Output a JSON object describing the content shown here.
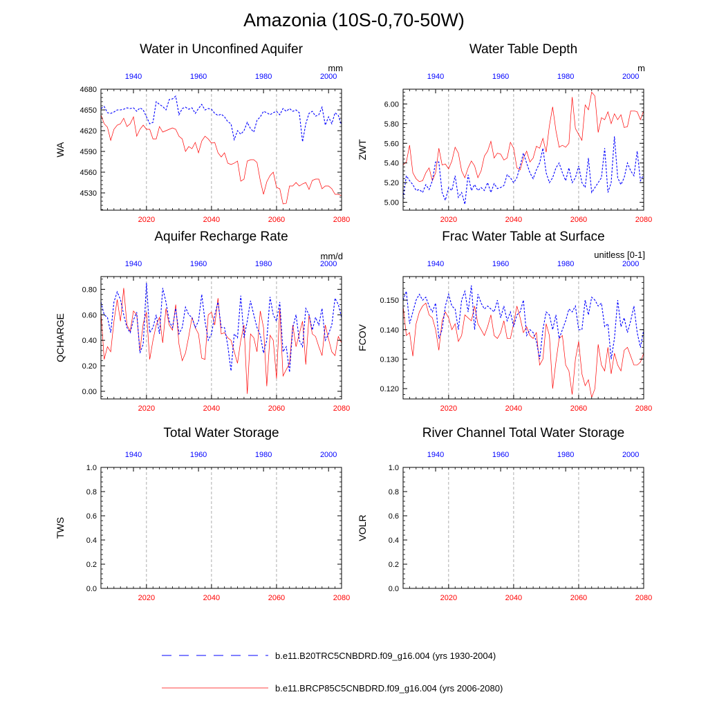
{
  "figure": {
    "title": "Amazonia (10S-0,70-50W)"
  },
  "colors": {
    "future": "#ff0000",
    "historical": "#0000ff",
    "axis": "#000000",
    "vline": "#999999"
  },
  "legend": {
    "items": [
      {
        "label": "b.e11.B20TRC5CNBDRD.f09_g16.004 (yrs 1930-2004)",
        "style": "dashed",
        "color": "#0000ff"
      },
      {
        "label": "b.e11.BRCP85C5CNBDRD.f09_g16.004 (yrs 2006-2080)",
        "style": "solid",
        "color": "#ff0000"
      }
    ]
  },
  "chart_data": [
    {
      "id": "wa",
      "type": "line",
      "title": "Water in Unconfined Aquifer",
      "ylabel": "WA",
      "units": "mm",
      "ylim": [
        4505,
        4680
      ],
      "yticks": [
        4530,
        4560,
        4590,
        4620,
        4650,
        4680
      ],
      "yminor_step": 6,
      "tick_decimals": 0,
      "xlim_bottom": [
        2006,
        2080
      ],
      "xticks_bottom": [
        2020,
        2040,
        2060,
        2080
      ],
      "xlim_top": [
        1930,
        2004
      ],
      "xticks_top": [
        1940,
        1960,
        1980,
        2000
      ],
      "vlines": [
        2020,
        2040,
        2060
      ],
      "series": [
        {
          "name": "b.e11.BRCP85C5CNBDRD.f09_g16.004 (yrs 2006-2080)",
          "axis": "bottom",
          "style": "solid",
          "x_start": 2006,
          "values": [
            4643,
            4630,
            4625,
            4606,
            4622,
            4628,
            4630,
            4638,
            4626,
            4630,
            4640,
            4612,
            4622,
            4628,
            4622,
            4622,
            4608,
            4608,
            4626,
            4618,
            4620,
            4622,
            4624,
            4622,
            4612,
            4608,
            4590,
            4597,
            4594,
            4603,
            4588,
            4605,
            4612,
            4608,
            4602,
            4603,
            4588,
            4582,
            4588,
            4573,
            4571,
            4573,
            4576,
            4547,
            4550,
            4576,
            4578,
            4578,
            4574,
            4548,
            4528,
            4546,
            4555,
            4560,
            4538,
            4536,
            4514,
            4515,
            4540,
            4540,
            4545,
            4540,
            4543,
            4545,
            4535,
            4548,
            4550,
            4550,
            4536,
            4540,
            4540,
            4536,
            4528,
            4528,
            4526
          ]
        },
        {
          "name": "b.e11.B20TRC5CNBDRD.f09_g16.004 (yrs 1930-2004)",
          "axis": "top",
          "style": "dashed",
          "x_start": 1930,
          "values": [
            4652,
            4655,
            4646,
            4645,
            4647,
            4650,
            4650,
            4651,
            4653,
            4652,
            4653,
            4648,
            4653,
            4650,
            4640,
            4630,
            4632,
            4662,
            4658,
            4655,
            4650,
            4665,
            4666,
            4670,
            4643,
            4652,
            4654,
            4651,
            4653,
            4645,
            4652,
            4658,
            4650,
            4652,
            4651,
            4645,
            4642,
            4644,
            4640,
            4633,
            4630,
            4607,
            4620,
            4615,
            4620,
            4632,
            4623,
            4618,
            4635,
            4640,
            4648,
            4646,
            4643,
            4646,
            4648,
            4643,
            4652,
            4648,
            4652,
            4648,
            4650,
            4646,
            4604,
            4630,
            4645,
            4648,
            4641,
            4643,
            4654,
            4628,
            4640,
            4630,
            4646,
            4642,
            4628
          ]
        }
      ]
    },
    {
      "id": "zwt",
      "type": "line",
      "title": "Water Table Depth",
      "ylabel": "ZWT",
      "units": "m",
      "ylim": [
        4.92,
        6.15
      ],
      "yticks": [
        5.0,
        5.2,
        5.4,
        5.6,
        5.8,
        6.0
      ],
      "yminor_step": 0.04,
      "tick_decimals": 2,
      "xlim_bottom": [
        2006,
        2080
      ],
      "xticks_bottom": [
        2020,
        2040,
        2060,
        2080
      ],
      "xlim_top": [
        1930,
        2004
      ],
      "xticks_top": [
        1940,
        1960,
        1980,
        2000
      ],
      "vlines": [
        2020,
        2040,
        2060
      ],
      "series": [
        {
          "name": "b.e11.BRCP85C5CNBDRD.f09_g16.004 (yrs 2006-2080)",
          "axis": "bottom",
          "style": "solid",
          "x_start": 2006,
          "values": [
            5.38,
            5.41,
            5.58,
            5.3,
            5.24,
            5.21,
            5.22,
            5.3,
            5.35,
            5.22,
            5.3,
            5.55,
            5.38,
            5.39,
            5.34,
            5.42,
            5.56,
            5.5,
            5.32,
            5.25,
            5.35,
            5.42,
            5.37,
            5.25,
            5.32,
            5.47,
            5.52,
            5.62,
            5.45,
            5.5,
            5.49,
            5.43,
            5.45,
            5.61,
            5.55,
            5.35,
            5.33,
            5.45,
            5.52,
            5.41,
            5.45,
            5.57,
            5.55,
            5.65,
            5.51,
            5.78,
            5.97,
            5.73,
            5.56,
            5.58,
            5.56,
            5.6,
            6.07,
            5.75,
            5.69,
            5.63,
            5.99,
            5.94,
            6.12,
            6.08,
            5.71,
            5.86,
            5.84,
            5.92,
            5.8,
            5.9,
            5.84,
            5.89,
            5.76,
            5.77,
            5.93,
            5.93,
            5.92,
            5.84,
            5.93
          ]
        },
        {
          "name": "b.e11.B20TRC5CNBDRD.f09_g16.004 (yrs 1930-2004)",
          "axis": "top",
          "style": "dashed",
          "x_start": 1930,
          "values": [
            5.04,
            5.27,
            5.22,
            5.18,
            5.12,
            5.13,
            5.1,
            5.18,
            5.13,
            5.22,
            5.41,
            5.41,
            5.1,
            5.02,
            5.15,
            5.12,
            5.27,
            5.05,
            5.1,
            4.98,
            5.28,
            5.12,
            5.18,
            5.12,
            5.15,
            5.12,
            5.2,
            5.1,
            5.19,
            5.14,
            5.15,
            5.17,
            5.28,
            5.25,
            5.2,
            5.25,
            5.37,
            5.5,
            5.4,
            5.3,
            5.24,
            5.33,
            5.4,
            5.55,
            5.3,
            5.2,
            5.25,
            5.35,
            5.4,
            5.3,
            5.22,
            5.35,
            5.2,
            5.25,
            5.37,
            5.2,
            5.15,
            5.45,
            5.1,
            5.15,
            5.2,
            5.25,
            5.55,
            5.1,
            5.2,
            5.67,
            5.25,
            5.18,
            5.25,
            5.4,
            5.32,
            5.27,
            5.52,
            5.22,
            5.28
          ]
        }
      ]
    },
    {
      "id": "qcharge",
      "type": "line",
      "title": "Aquifer Recharge Rate",
      "ylabel": "QCHARGE",
      "units": "mm/d",
      "ylim": [
        -0.06,
        0.9
      ],
      "yticks": [
        0.0,
        0.2,
        0.4,
        0.6,
        0.8
      ],
      "yminor_step": 0.04,
      "tick_decimals": 2,
      "xlim_bottom": [
        2006,
        2080
      ],
      "xticks_bottom": [
        2020,
        2040,
        2060,
        2080
      ],
      "xlim_top": [
        1930,
        2004
      ],
      "xticks_top": [
        1940,
        1960,
        1980,
        2000
      ],
      "vlines": [
        2020,
        2040,
        2060
      ],
      "series": [
        {
          "name": "b.e11.BRCP85C5CNBDRD.f09_g16.004 (yrs 2006-2080)",
          "axis": "bottom",
          "style": "solid",
          "x_start": 2006,
          "values": [
            0.62,
            0.25,
            0.35,
            0.31,
            0.55,
            0.72,
            0.55,
            0.81,
            0.52,
            0.47,
            0.63,
            0.6,
            0.32,
            0.53,
            0.62,
            0.25,
            0.4,
            0.52,
            0.58,
            0.38,
            0.65,
            0.52,
            0.48,
            0.68,
            0.37,
            0.24,
            0.3,
            0.43,
            0.58,
            0.5,
            0.45,
            0.26,
            0.25,
            0.6,
            0.62,
            0.52,
            0.73,
            0.45,
            0.46,
            0.42,
            0.4,
            0.31,
            0.22,
            0.4,
            0.52,
            -0.02,
            0.45,
            0.42,
            0.31,
            0.63,
            0.5,
            0.04,
            0.44,
            0.4,
            0.1,
            0.65,
            0.12,
            0.17,
            0.22,
            0.52,
            0.35,
            0.45,
            0.55,
            0.21,
            0.6,
            0.45,
            0.43,
            0.35,
            0.28,
            0.52,
            0.41,
            0.31,
            0.28,
            0.43,
            0.38
          ]
        },
        {
          "name": "b.e11.B20TRC5CNBDRD.f09_g16.004 (yrs 1930-2004)",
          "axis": "top",
          "style": "dashed",
          "x_start": 1930,
          "values": [
            0.7,
            0.6,
            0.58,
            0.46,
            0.7,
            0.78,
            0.72,
            0.6,
            0.5,
            0.46,
            0.56,
            0.62,
            0.3,
            0.37,
            0.85,
            0.46,
            0.5,
            0.6,
            0.45,
            0.81,
            0.7,
            0.55,
            0.5,
            0.65,
            0.45,
            0.5,
            0.66,
            0.6,
            0.58,
            0.5,
            0.55,
            0.76,
            0.55,
            0.4,
            0.45,
            0.6,
            0.7,
            0.5,
            0.5,
            0.36,
            0.16,
            0.45,
            0.42,
            0.75,
            0.42,
            0.55,
            0.71,
            0.6,
            0.5,
            0.44,
            0.3,
            0.4,
            0.74,
            0.6,
            0.55,
            0.7,
            0.31,
            0.35,
            0.15,
            0.5,
            0.6,
            0.4,
            0.35,
            0.65,
            0.6,
            0.48,
            0.58,
            0.52,
            0.65,
            0.4,
            0.45,
            0.52,
            0.73,
            0.68,
            0.58
          ]
        }
      ]
    },
    {
      "id": "fcov",
      "type": "line",
      "title": "Frac Water Table at Surface",
      "ylabel": "FCOV",
      "units": "unitless [0-1]",
      "ylim": [
        0.1165,
        0.158
      ],
      "yticks": [
        0.12,
        0.13,
        0.14,
        0.15
      ],
      "yminor_step": 0.002,
      "tick_decimals": 3,
      "xlim_bottom": [
        2006,
        2080
      ],
      "xticks_bottom": [
        2020,
        2040,
        2060,
        2080
      ],
      "xlim_top": [
        1930,
        2004
      ],
      "xticks_top": [
        1940,
        1960,
        1980,
        2000
      ],
      "vlines": [
        2020,
        2040,
        2060
      ],
      "series": [
        {
          "name": "b.e11.BRCP85C5CNBDRD.f09_g16.004 (yrs 2006-2080)",
          "axis": "bottom",
          "style": "solid",
          "x_start": 2006,
          "values": [
            0.148,
            0.138,
            0.139,
            0.131,
            0.142,
            0.146,
            0.148,
            0.149,
            0.145,
            0.144,
            0.14,
            0.133,
            0.143,
            0.146,
            0.144,
            0.14,
            0.142,
            0.136,
            0.138,
            0.145,
            0.144,
            0.143,
            0.148,
            0.142,
            0.14,
            0.138,
            0.141,
            0.145,
            0.138,
            0.137,
            0.139,
            0.143,
            0.137,
            0.137,
            0.142,
            0.148,
            0.144,
            0.139,
            0.141,
            0.138,
            0.137,
            0.139,
            0.128,
            0.13,
            0.142,
            0.138,
            0.12,
            0.129,
            0.137,
            0.138,
            0.128,
            0.126,
            0.118,
            0.13,
            0.136,
            0.125,
            0.121,
            0.123,
            0.117,
            0.12,
            0.135,
            0.128,
            0.126,
            0.134,
            0.125,
            0.132,
            0.128,
            0.126,
            0.133,
            0.134,
            0.131,
            0.128,
            0.128,
            0.129,
            0.132
          ]
        },
        {
          "name": "b.e11.B20TRC5CNBDRD.f09_g16.004 (yrs 1930-2004)",
          "axis": "top",
          "style": "dashed",
          "x_start": 1930,
          "values": [
            0.15,
            0.153,
            0.142,
            0.146,
            0.15,
            0.152,
            0.15,
            0.151,
            0.148,
            0.146,
            0.149,
            0.137,
            0.14,
            0.148,
            0.152,
            0.148,
            0.147,
            0.14,
            0.15,
            0.153,
            0.146,
            0.155,
            0.14,
            0.152,
            0.149,
            0.147,
            0.148,
            0.147,
            0.146,
            0.15,
            0.144,
            0.148,
            0.143,
            0.146,
            0.141,
            0.145,
            0.146,
            0.15,
            0.138,
            0.14,
            0.139,
            0.136,
            0.13,
            0.14,
            0.146,
            0.145,
            0.14,
            0.145,
            0.137,
            0.14,
            0.143,
            0.147,
            0.146,
            0.148,
            0.14,
            0.14,
            0.15,
            0.145,
            0.151,
            0.15,
            0.148,
            0.149,
            0.141,
            0.142,
            0.13,
            0.137,
            0.15,
            0.141,
            0.144,
            0.139,
            0.143,
            0.148,
            0.139,
            0.134,
            0.14
          ]
        }
      ]
    },
    {
      "id": "tws",
      "type": "line",
      "title": "Total Water Storage",
      "ylabel": "TWS",
      "units": "",
      "ylim": [
        0.0,
        1.0
      ],
      "yticks": [
        0.0,
        0.2,
        0.4,
        0.6,
        0.8,
        1.0
      ],
      "yminor_step": 0.04,
      "tick_decimals": 1,
      "xlim_bottom": [
        2006,
        2080
      ],
      "xticks_bottom": [
        2020,
        2040,
        2060,
        2080
      ],
      "xlim_top": [
        1930,
        2004
      ],
      "xticks_top": [
        1940,
        1960,
        1980,
        2000
      ],
      "vlines": [
        2020,
        2040,
        2060
      ],
      "series": []
    },
    {
      "id": "volr",
      "type": "line",
      "title": "River Channel Total Water Storage",
      "ylabel": "VOLR",
      "units": "",
      "ylim": [
        0.0,
        1.0
      ],
      "yticks": [
        0.0,
        0.2,
        0.4,
        0.6,
        0.8,
        1.0
      ],
      "yminor_step": 0.04,
      "tick_decimals": 1,
      "xlim_bottom": [
        2006,
        2080
      ],
      "xticks_bottom": [
        2020,
        2040,
        2060,
        2080
      ],
      "xlim_top": [
        1930,
        2004
      ],
      "xticks_top": [
        1940,
        1960,
        1980,
        2000
      ],
      "vlines": [
        2020,
        2040,
        2060
      ],
      "series": []
    }
  ]
}
